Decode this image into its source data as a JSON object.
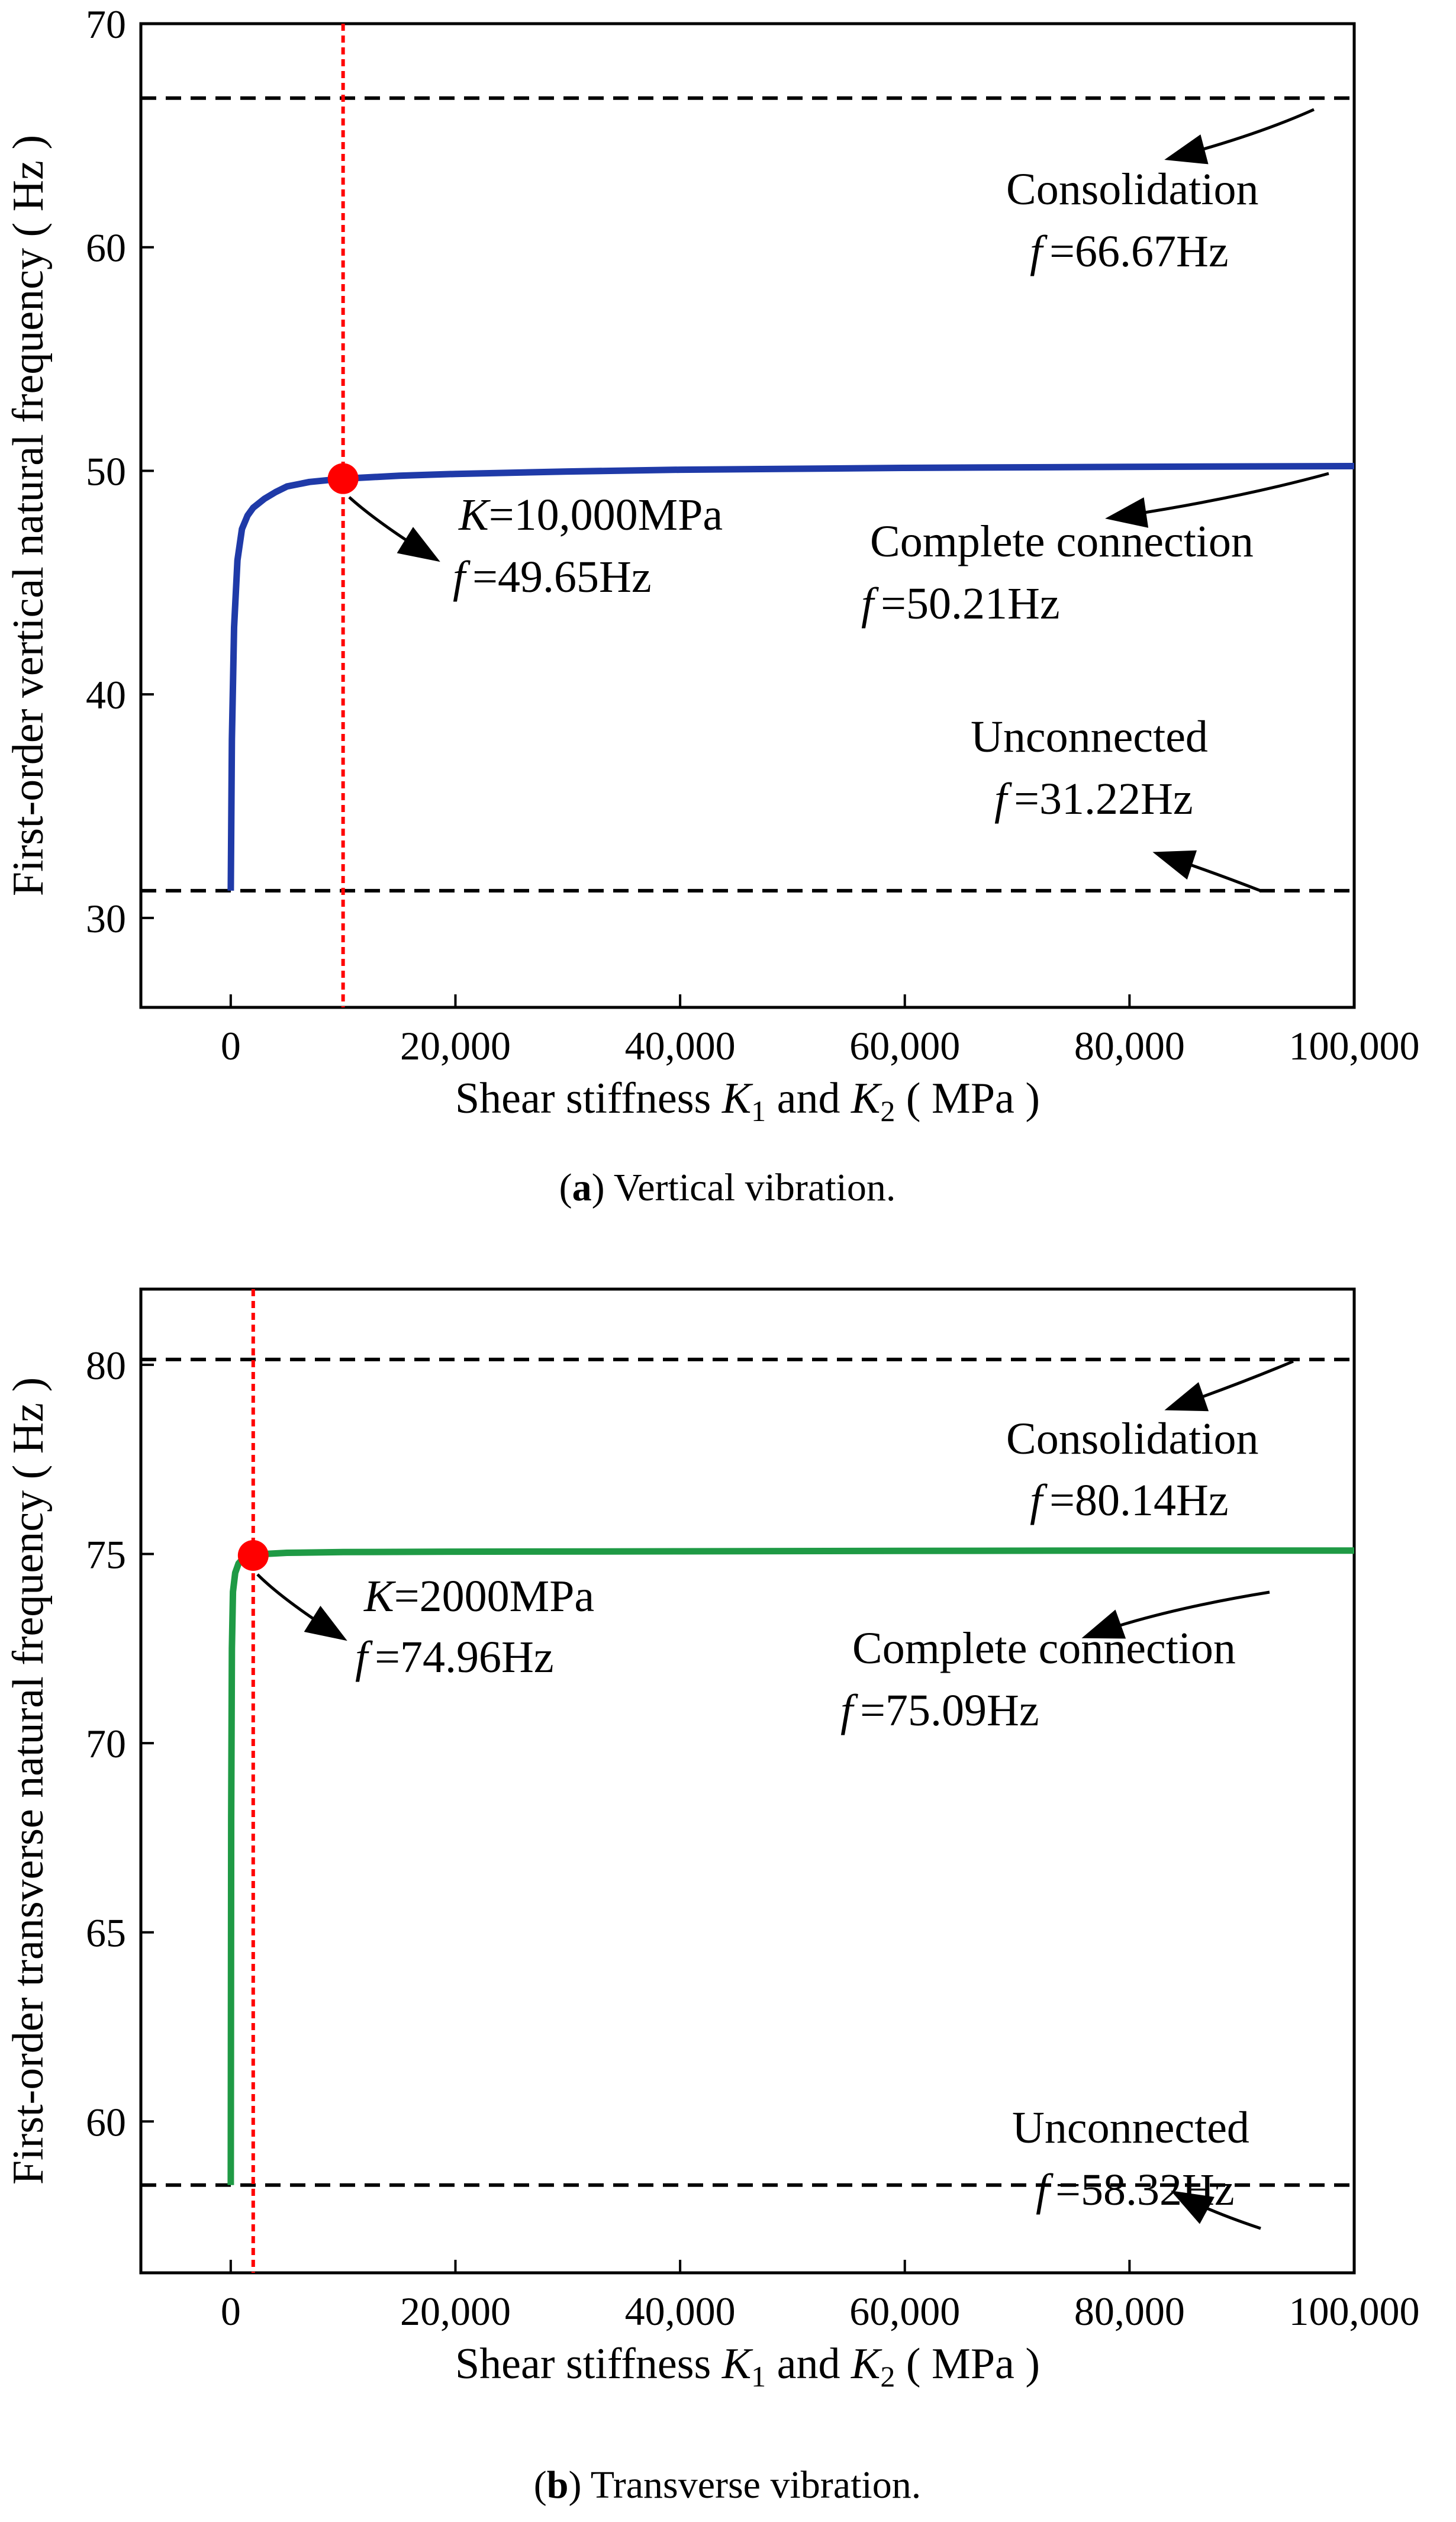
{
  "chart_data": [
    {
      "type": "line",
      "panel_id": "a",
      "caption_letter": "a",
      "caption_text": "Vertical vibration.",
      "xlabel": {
        "pre": "Shear stiffness ",
        "k1": "K",
        "sub1": "1",
        "mid": " and ",
        "k2": "K",
        "sub2": "2",
        "post": " ( MPa )"
      },
      "ylabel": "First-order vertical natural frequency ( Hz )",
      "xlim": [
        -8000,
        100000
      ],
      "ylim": [
        26,
        70
      ],
      "xticks": [
        0,
        20000,
        40000,
        60000,
        80000,
        100000
      ],
      "xtick_labels": [
        "0",
        "20,000",
        "40,000",
        "60,000",
        "80,000",
        "100,000"
      ],
      "yticks": [
        30,
        40,
        50,
        60,
        70
      ],
      "ytick_labels": [
        "30",
        "40",
        "50",
        "60",
        "70"
      ],
      "series": [
        {
          "name": "first-order vertical natural frequency",
          "color": "#1f3aa8",
          "x": [
            0,
            100,
            300,
            600,
            1000,
            1500,
            2000,
            3000,
            4000,
            5000,
            7000,
            10000,
            15000,
            20000,
            30000,
            40000,
            60000,
            80000,
            100000
          ],
          "y": [
            31.22,
            38.0,
            43.0,
            46.0,
            47.4,
            48.0,
            48.35,
            48.75,
            49.05,
            49.3,
            49.5,
            49.65,
            49.78,
            49.86,
            49.97,
            50.05,
            50.13,
            50.18,
            50.21
          ]
        }
      ],
      "reference_lines": [
        {
          "label": "Consolidation",
          "value": 66.67,
          "f_text": "=66.67Hz"
        },
        {
          "label": "Unconnected",
          "value": 31.22,
          "f_text": "=31.22Hz"
        }
      ],
      "complete": {
        "label": "Complete connection",
        "value": 50.21,
        "f_text": "=50.21Hz"
      },
      "marker": {
        "x": 10000,
        "y": 49.65,
        "k_text": "=10,000MPa",
        "f_text": "=49.65Hz",
        "color": "#ff0000"
      },
      "f_symbol": "f",
      "k_symbol": "K"
    },
    {
      "type": "line",
      "panel_id": "b",
      "caption_letter": "b",
      "caption_text": "Transverse vibration.",
      "xlabel": {
        "pre": "Shear stiffness ",
        "k1": "K",
        "sub1": "1",
        "mid": " and ",
        "k2": "K",
        "sub2": "2",
        "post": " ( MPa )"
      },
      "ylabel": "First-order transverse natural frequency ( Hz )",
      "xlim": [
        -8000,
        100000
      ],
      "ylim": [
        56,
        82
      ],
      "xticks": [
        0,
        20000,
        40000,
        60000,
        80000,
        100000
      ],
      "xtick_labels": [
        "0",
        "20,000",
        "40,000",
        "60,000",
        "80,000",
        "100,000"
      ],
      "yticks": [
        60,
        65,
        70,
        75,
        80
      ],
      "ytick_labels": [
        "60",
        "65",
        "70",
        "75",
        "80"
      ],
      "series": [
        {
          "name": "first-order transverse natural frequency",
          "color": "#1f9a45",
          "x": [
            0,
            40,
            100,
            200,
            400,
            700,
            1000,
            1500,
            2000,
            3000,
            5000,
            10000,
            20000,
            40000,
            60000,
            80000,
            100000
          ],
          "y": [
            58.32,
            68.0,
            72.5,
            74.0,
            74.5,
            74.75,
            74.85,
            74.92,
            74.96,
            75.0,
            75.03,
            75.05,
            75.06,
            75.07,
            75.08,
            75.09,
            75.09
          ]
        }
      ],
      "reference_lines": [
        {
          "label": "Consolidation",
          "value": 80.14,
          "f_text": "=80.14Hz"
        },
        {
          "label": "Unconnected",
          "value": 58.32,
          "f_text": "=58.32Hz"
        }
      ],
      "complete": {
        "label": "Complete connection",
        "value": 75.09,
        "f_text": "=75.09Hz"
      },
      "marker": {
        "x": 2000,
        "y": 74.96,
        "k_text": "=2000MPa",
        "f_text": "=74.96Hz",
        "color": "#ff0000"
      },
      "f_symbol": "f",
      "k_symbol": "K"
    }
  ]
}
